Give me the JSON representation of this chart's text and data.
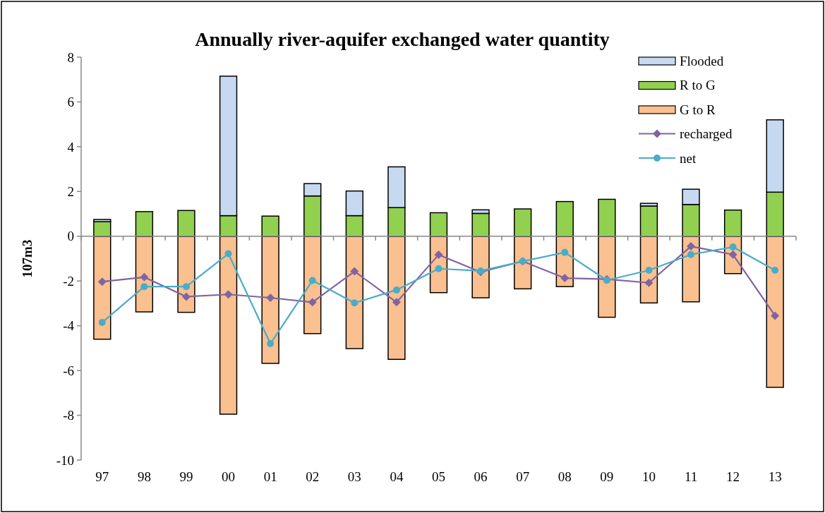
{
  "chart_data": {
    "type": "bar",
    "title": "Annually river-aquifer exchanged water quantity",
    "ylabel": "107m3",
    "categories": [
      "97",
      "98",
      "99",
      "00",
      "01",
      "02",
      "03",
      "04",
      "05",
      "06",
      "07",
      "08",
      "09",
      "10",
      "11",
      "12",
      "13"
    ],
    "stacked": true,
    "ylim": [
      -10,
      8
    ],
    "yticks": [
      -10,
      -8,
      -6,
      -4,
      -2,
      0,
      2,
      4,
      6,
      8
    ],
    "legend": "top right",
    "series": [
      {
        "name": "G to R",
        "color": "#fac090",
        "values": [
          -4.6,
          -3.38,
          -3.4,
          -7.95,
          -5.68,
          -4.35,
          -5.02,
          -5.5,
          -2.52,
          -2.75,
          -2.35,
          -2.25,
          -3.62,
          -2.98,
          -2.93,
          -1.67,
          -6.75
        ]
      },
      {
        "name": "R to G",
        "color": "#92d050",
        "values": [
          0.65,
          1.1,
          1.15,
          0.92,
          0.9,
          1.8,
          0.92,
          1.28,
          1.05,
          1.02,
          1.22,
          1.55,
          1.65,
          1.35,
          1.42,
          1.17,
          1.97
        ]
      },
      {
        "name": "Flooded",
        "color": "#c6d9f1",
        "values": [
          0.1,
          0,
          0,
          6.23,
          0,
          0.55,
          1.1,
          1.82,
          0,
          0.16,
          0,
          0,
          0,
          0.12,
          0.68,
          0,
          3.23
        ]
      },
      {
        "name": "recharged",
        "type": "line",
        "marker": "diamond",
        "color": "#8064a2",
        "values": [
          -2.03,
          -1.83,
          -2.7,
          -2.6,
          -2.75,
          -2.95,
          -1.57,
          -2.95,
          -0.83,
          -1.6,
          -1.12,
          -1.87,
          -1.92,
          -2.08,
          -0.45,
          -0.82,
          -3.55
        ]
      },
      {
        "name": "net",
        "type": "line",
        "marker": "circle",
        "color": "#4bacc6",
        "values": [
          -3.85,
          -2.25,
          -2.25,
          -0.78,
          -4.8,
          -1.98,
          -2.98,
          -2.4,
          -1.45,
          -1.55,
          -1.12,
          -0.72,
          -1.97,
          -1.52,
          -0.82,
          -0.48,
          -1.52
        ]
      }
    ]
  }
}
